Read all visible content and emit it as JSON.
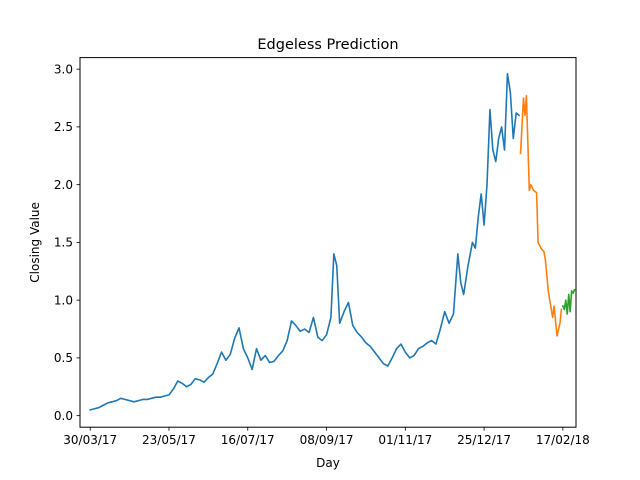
{
  "chart_data": {
    "type": "line",
    "title": "Edgeless Prediction",
    "xlabel": "Day",
    "ylabel": "Closing Value",
    "xlim": [
      "2017-03-23",
      "2018-02-26"
    ],
    "ylim": [
      -0.1,
      3.1
    ],
    "grid": false,
    "x_ticks": [
      {
        "date": "2017-03-30",
        "label": "30/03/17"
      },
      {
        "date": "2017-05-23",
        "label": "23/05/17"
      },
      {
        "date": "2017-07-16",
        "label": "16/07/17"
      },
      {
        "date": "2017-09-08",
        "label": "08/09/17"
      },
      {
        "date": "2017-11-01",
        "label": "01/11/17"
      },
      {
        "date": "2017-12-25",
        "label": "25/12/17"
      },
      {
        "date": "2018-02-17",
        "label": "17/02/18"
      }
    ],
    "y_ticks": [
      {
        "value": 0.0,
        "label": "0.0"
      },
      {
        "value": 0.5,
        "label": "0.5"
      },
      {
        "value": 1.0,
        "label": "1.0"
      },
      {
        "value": 1.5,
        "label": "1.5"
      },
      {
        "value": 2.0,
        "label": "2.0"
      },
      {
        "value": 2.5,
        "label": "2.5"
      },
      {
        "value": 3.0,
        "label": "3.0"
      }
    ],
    "series": [
      {
        "color": "#1f77b4",
        "points": [
          [
            "2017-03-30",
            0.05
          ],
          [
            "2017-04-02",
            0.06
          ],
          [
            "2017-04-05",
            0.07
          ],
          [
            "2017-04-08",
            0.09
          ],
          [
            "2017-04-11",
            0.11
          ],
          [
            "2017-04-14",
            0.12
          ],
          [
            "2017-04-17",
            0.13
          ],
          [
            "2017-04-20",
            0.15
          ],
          [
            "2017-04-23",
            0.14
          ],
          [
            "2017-04-26",
            0.13
          ],
          [
            "2017-04-29",
            0.12
          ],
          [
            "2017-05-02",
            0.13
          ],
          [
            "2017-05-05",
            0.14
          ],
          [
            "2017-05-08",
            0.14
          ],
          [
            "2017-05-11",
            0.15
          ],
          [
            "2017-05-14",
            0.16
          ],
          [
            "2017-05-17",
            0.16
          ],
          [
            "2017-05-20",
            0.17
          ],
          [
            "2017-05-23",
            0.18
          ],
          [
            "2017-05-26",
            0.23
          ],
          [
            "2017-05-29",
            0.3
          ],
          [
            "2017-06-01",
            0.28
          ],
          [
            "2017-06-04",
            0.25
          ],
          [
            "2017-06-07",
            0.27
          ],
          [
            "2017-06-10",
            0.32
          ],
          [
            "2017-06-13",
            0.31
          ],
          [
            "2017-06-16",
            0.29
          ],
          [
            "2017-06-19",
            0.33
          ],
          [
            "2017-06-22",
            0.36
          ],
          [
            "2017-06-25",
            0.45
          ],
          [
            "2017-06-28",
            0.55
          ],
          [
            "2017-07-01",
            0.48
          ],
          [
            "2017-07-04",
            0.53
          ],
          [
            "2017-07-07",
            0.67
          ],
          [
            "2017-07-10",
            0.76
          ],
          [
            "2017-07-13",
            0.58
          ],
          [
            "2017-07-16",
            0.5
          ],
          [
            "2017-07-19",
            0.4
          ],
          [
            "2017-07-22",
            0.58
          ],
          [
            "2017-07-25",
            0.48
          ],
          [
            "2017-07-28",
            0.52
          ],
          [
            "2017-07-31",
            0.46
          ],
          [
            "2017-08-03",
            0.47
          ],
          [
            "2017-08-06",
            0.52
          ],
          [
            "2017-08-09",
            0.56
          ],
          [
            "2017-08-12",
            0.65
          ],
          [
            "2017-08-15",
            0.82
          ],
          [
            "2017-08-18",
            0.78
          ],
          [
            "2017-08-21",
            0.73
          ],
          [
            "2017-08-24",
            0.75
          ],
          [
            "2017-08-27",
            0.72
          ],
          [
            "2017-08-30",
            0.85
          ],
          [
            "2017-09-02",
            0.68
          ],
          [
            "2017-09-05",
            0.65
          ],
          [
            "2017-09-08",
            0.7
          ],
          [
            "2017-09-11",
            0.85
          ],
          [
            "2017-09-13",
            1.4
          ],
          [
            "2017-09-15",
            1.3
          ],
          [
            "2017-09-17",
            0.8
          ],
          [
            "2017-09-20",
            0.9
          ],
          [
            "2017-09-23",
            0.98
          ],
          [
            "2017-09-26",
            0.78
          ],
          [
            "2017-09-29",
            0.72
          ],
          [
            "2017-10-02",
            0.68
          ],
          [
            "2017-10-05",
            0.63
          ],
          [
            "2017-10-08",
            0.6
          ],
          [
            "2017-10-11",
            0.55
          ],
          [
            "2017-10-14",
            0.5
          ],
          [
            "2017-10-17",
            0.45
          ],
          [
            "2017-10-20",
            0.43
          ],
          [
            "2017-10-23",
            0.5
          ],
          [
            "2017-10-26",
            0.58
          ],
          [
            "2017-10-29",
            0.62
          ],
          [
            "2017-11-01",
            0.55
          ],
          [
            "2017-11-04",
            0.5
          ],
          [
            "2017-11-07",
            0.52
          ],
          [
            "2017-11-10",
            0.58
          ],
          [
            "2017-11-13",
            0.6
          ],
          [
            "2017-11-16",
            0.63
          ],
          [
            "2017-11-19",
            0.65
          ],
          [
            "2017-11-22",
            0.62
          ],
          [
            "2017-11-25",
            0.75
          ],
          [
            "2017-11-28",
            0.9
          ],
          [
            "2017-12-01",
            0.8
          ],
          [
            "2017-12-04",
            0.88
          ],
          [
            "2017-12-07",
            1.4
          ],
          [
            "2017-12-09",
            1.15
          ],
          [
            "2017-12-11",
            1.05
          ],
          [
            "2017-12-14",
            1.3
          ],
          [
            "2017-12-17",
            1.5
          ],
          [
            "2017-12-19",
            1.45
          ],
          [
            "2017-12-21",
            1.72
          ],
          [
            "2017-12-23",
            1.92
          ],
          [
            "2017-12-25",
            1.65
          ],
          [
            "2017-12-27",
            2.0
          ],
          [
            "2017-12-29",
            2.65
          ],
          [
            "2017-12-31",
            2.3
          ],
          [
            "2018-01-02",
            2.2
          ],
          [
            "2018-01-04",
            2.4
          ],
          [
            "2018-01-06",
            2.5
          ],
          [
            "2018-01-08",
            2.3
          ],
          [
            "2018-01-10",
            2.96
          ],
          [
            "2018-01-12",
            2.8
          ],
          [
            "2018-01-14",
            2.4
          ],
          [
            "2018-01-16",
            2.62
          ],
          [
            "2018-01-18",
            2.6
          ]
        ]
      },
      {
        "color": "#ff7f0e",
        "points": [
          [
            "2018-01-19",
            2.27
          ],
          [
            "2018-01-21",
            2.75
          ],
          [
            "2018-01-22",
            2.6
          ],
          [
            "2018-01-23",
            2.77
          ],
          [
            "2018-01-25",
            1.95
          ],
          [
            "2018-01-26",
            2.0
          ],
          [
            "2018-01-28",
            1.95
          ],
          [
            "2018-01-30",
            1.93
          ],
          [
            "2018-01-31",
            1.5
          ],
          [
            "2018-02-02",
            1.45
          ],
          [
            "2018-02-04",
            1.42
          ],
          [
            "2018-02-05",
            1.35
          ],
          [
            "2018-02-07",
            1.08
          ],
          [
            "2018-02-08",
            1.0
          ],
          [
            "2018-02-10",
            0.85
          ],
          [
            "2018-02-11",
            0.95
          ],
          [
            "2018-02-12",
            0.82
          ],
          [
            "2018-02-13",
            0.69
          ],
          [
            "2018-02-15",
            0.8
          ],
          [
            "2018-02-16",
            0.92
          ]
        ]
      },
      {
        "color": "#2ca02c",
        "points": [
          [
            "2018-02-17",
            0.95
          ],
          [
            "2018-02-18",
            0.92
          ],
          [
            "2018-02-19",
            1.0
          ],
          [
            "2018-02-20",
            0.88
          ],
          [
            "2018-02-21",
            1.05
          ],
          [
            "2018-02-22",
            0.9
          ],
          [
            "2018-02-23",
            1.08
          ],
          [
            "2018-02-24",
            1.06
          ],
          [
            "2018-02-25",
            1.09
          ]
        ]
      }
    ]
  }
}
